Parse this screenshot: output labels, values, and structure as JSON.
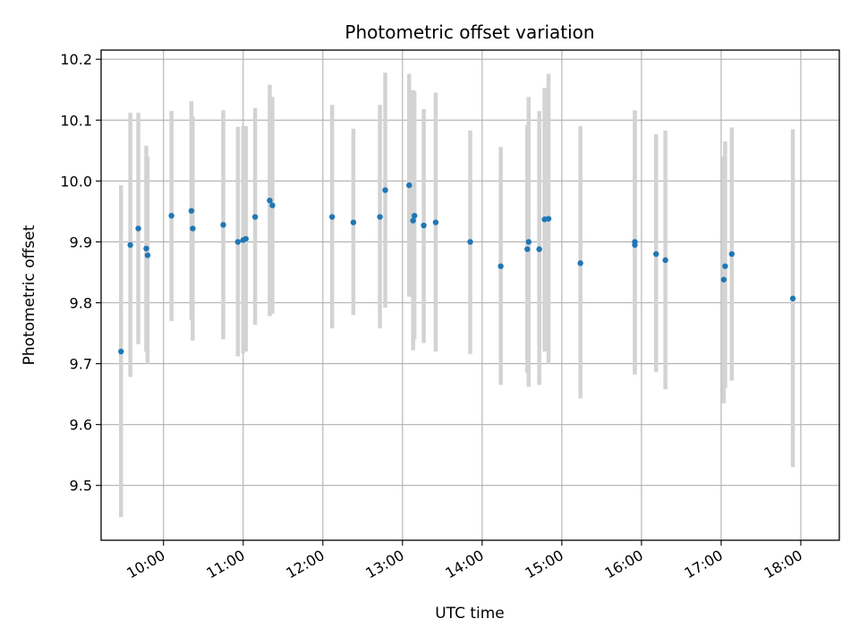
{
  "chart_data": {
    "type": "scatter",
    "title": "Photometric offset variation",
    "xlabel": "UTC time",
    "ylabel": "Photometric offset",
    "x_is_time": true,
    "xlim": [
      "09:13",
      "18:29"
    ],
    "ylim": [
      9.41,
      10.215
    ],
    "x_ticks": [
      "10:00",
      "11:00",
      "12:00",
      "13:00",
      "14:00",
      "15:00",
      "16:00",
      "17:00",
      "18:00"
    ],
    "y_ticks": [
      9.5,
      9.6,
      9.7,
      9.8,
      9.9,
      10.0,
      10.1,
      10.2
    ],
    "grid": true,
    "legend": "none",
    "colors": {
      "point": "#1f77b4",
      "errorbar": "#d3d3d3",
      "grid": "#b0b0b0"
    },
    "points": [
      {
        "x": "09:28",
        "y": 9.72,
        "ylo": 9.448,
        "yhi": 9.993
      },
      {
        "x": "09:35",
        "y": 9.895,
        "ylo": 9.678,
        "yhi": 10.112
      },
      {
        "x": "09:41",
        "y": 9.922,
        "ylo": 9.732,
        "yhi": 10.112
      },
      {
        "x": "09:47",
        "y": 9.889,
        "ylo": 9.72,
        "yhi": 10.058
      },
      {
        "x": "09:48",
        "y": 9.878,
        "ylo": 9.7,
        "yhi": 10.04
      },
      {
        "x": "10:06",
        "y": 9.943,
        "ylo": 9.77,
        "yhi": 10.115
      },
      {
        "x": "10:21",
        "y": 9.951,
        "ylo": 9.772,
        "yhi": 10.131
      },
      {
        "x": "10:22",
        "y": 9.922,
        "ylo": 9.738,
        "yhi": 10.106
      },
      {
        "x": "10:45",
        "y": 9.928,
        "ylo": 9.74,
        "yhi": 10.116
      },
      {
        "x": "10:56",
        "y": 9.9,
        "ylo": 9.712,
        "yhi": 10.089
      },
      {
        "x": "11:00",
        "y": 9.903,
        "ylo": 9.717,
        "yhi": 10.09
      },
      {
        "x": "11:02",
        "y": 9.905,
        "ylo": 9.72,
        "yhi": 10.09
      },
      {
        "x": "11:09",
        "y": 9.941,
        "ylo": 9.764,
        "yhi": 10.12
      },
      {
        "x": "11:20",
        "y": 9.968,
        "ylo": 9.778,
        "yhi": 10.158
      },
      {
        "x": "11:22",
        "y": 9.96,
        "ylo": 9.782,
        "yhi": 10.138
      },
      {
        "x": "12:07",
        "y": 9.941,
        "ylo": 9.758,
        "yhi": 10.125
      },
      {
        "x": "12:23",
        "y": 9.932,
        "ylo": 9.78,
        "yhi": 10.086
      },
      {
        "x": "12:43",
        "y": 9.941,
        "ylo": 9.758,
        "yhi": 10.125
      },
      {
        "x": "12:47",
        "y": 9.985,
        "ylo": 9.792,
        "yhi": 10.178
      },
      {
        "x": "13:05",
        "y": 9.993,
        "ylo": 9.81,
        "yhi": 10.176
      },
      {
        "x": "13:08",
        "y": 9.935,
        "ylo": 9.722,
        "yhi": 10.149
      },
      {
        "x": "13:09",
        "y": 9.943,
        "ylo": 9.74,
        "yhi": 10.147
      },
      {
        "x": "13:16",
        "y": 9.927,
        "ylo": 9.734,
        "yhi": 10.118
      },
      {
        "x": "13:25",
        "y": 9.932,
        "ylo": 9.72,
        "yhi": 10.145
      },
      {
        "x": "13:51",
        "y": 9.9,
        "ylo": 9.716,
        "yhi": 10.083
      },
      {
        "x": "14:14",
        "y": 9.86,
        "ylo": 9.665,
        "yhi": 10.056
      },
      {
        "x": "14:34",
        "y": 9.888,
        "ylo": 9.685,
        "yhi": 10.092
      },
      {
        "x": "14:35",
        "y": 9.9,
        "ylo": 9.662,
        "yhi": 10.138
      },
      {
        "x": "14:43",
        "y": 9.888,
        "ylo": 9.665,
        "yhi": 10.115
      },
      {
        "x": "14:47",
        "y": 9.937,
        "ylo": 9.72,
        "yhi": 10.153
      },
      {
        "x": "14:50",
        "y": 9.938,
        "ylo": 9.7,
        "yhi": 10.176
      },
      {
        "x": "15:14",
        "y": 9.865,
        "ylo": 9.643,
        "yhi": 10.09
      },
      {
        "x": "15:55",
        "y": 9.895,
        "ylo": 9.682,
        "yhi": 10.116
      },
      {
        "x": "15:55",
        "y": 9.9,
        "ylo": 9.685,
        "yhi": 10.115
      },
      {
        "x": "16:11",
        "y": 9.88,
        "ylo": 9.686,
        "yhi": 10.077
      },
      {
        "x": "16:18",
        "y": 9.87,
        "ylo": 9.658,
        "yhi": 10.083
      },
      {
        "x": "17:02",
        "y": 9.838,
        "ylo": 9.635,
        "yhi": 10.04
      },
      {
        "x": "17:03",
        "y": 9.86,
        "ylo": 9.66,
        "yhi": 10.065
      },
      {
        "x": "17:08",
        "y": 9.88,
        "ylo": 9.672,
        "yhi": 10.088
      },
      {
        "x": "17:54",
        "y": 9.807,
        "ylo": 9.53,
        "yhi": 10.085
      }
    ]
  }
}
